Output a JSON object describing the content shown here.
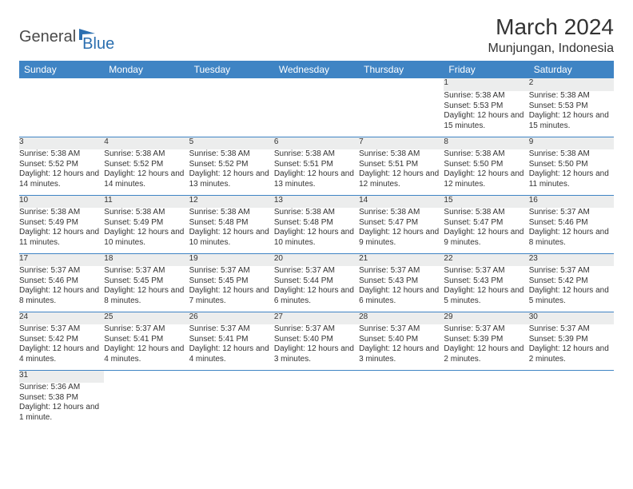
{
  "brand": {
    "text1": "General",
    "text2": "Blue"
  },
  "title": "March 2024",
  "location": "Munjungan, Indonesia",
  "colors": {
    "header_bg": "#3f84c4",
    "header_fg": "#ffffff",
    "daynum_bg": "#eceded",
    "row_divider": "#3f84c4",
    "text": "#333333",
    "logo_gray": "#4a4a4a",
    "logo_blue": "#2b6fb0"
  },
  "weekdays": [
    "Sunday",
    "Monday",
    "Tuesday",
    "Wednesday",
    "Thursday",
    "Friday",
    "Saturday"
  ],
  "weeks": [
    [
      null,
      null,
      null,
      null,
      null,
      {
        "n": "1",
        "sr": "5:38 AM",
        "ss": "5:53 PM",
        "dl": "12 hours and 15 minutes."
      },
      {
        "n": "2",
        "sr": "5:38 AM",
        "ss": "5:53 PM",
        "dl": "12 hours and 15 minutes."
      }
    ],
    [
      {
        "n": "3",
        "sr": "5:38 AM",
        "ss": "5:52 PM",
        "dl": "12 hours and 14 minutes."
      },
      {
        "n": "4",
        "sr": "5:38 AM",
        "ss": "5:52 PM",
        "dl": "12 hours and 14 minutes."
      },
      {
        "n": "5",
        "sr": "5:38 AM",
        "ss": "5:52 PM",
        "dl": "12 hours and 13 minutes."
      },
      {
        "n": "6",
        "sr": "5:38 AM",
        "ss": "5:51 PM",
        "dl": "12 hours and 13 minutes."
      },
      {
        "n": "7",
        "sr": "5:38 AM",
        "ss": "5:51 PM",
        "dl": "12 hours and 12 minutes."
      },
      {
        "n": "8",
        "sr": "5:38 AM",
        "ss": "5:50 PM",
        "dl": "12 hours and 12 minutes."
      },
      {
        "n": "9",
        "sr": "5:38 AM",
        "ss": "5:50 PM",
        "dl": "12 hours and 11 minutes."
      }
    ],
    [
      {
        "n": "10",
        "sr": "5:38 AM",
        "ss": "5:49 PM",
        "dl": "12 hours and 11 minutes."
      },
      {
        "n": "11",
        "sr": "5:38 AM",
        "ss": "5:49 PM",
        "dl": "12 hours and 10 minutes."
      },
      {
        "n": "12",
        "sr": "5:38 AM",
        "ss": "5:48 PM",
        "dl": "12 hours and 10 minutes."
      },
      {
        "n": "13",
        "sr": "5:38 AM",
        "ss": "5:48 PM",
        "dl": "12 hours and 10 minutes."
      },
      {
        "n": "14",
        "sr": "5:38 AM",
        "ss": "5:47 PM",
        "dl": "12 hours and 9 minutes."
      },
      {
        "n": "15",
        "sr": "5:38 AM",
        "ss": "5:47 PM",
        "dl": "12 hours and 9 minutes."
      },
      {
        "n": "16",
        "sr": "5:37 AM",
        "ss": "5:46 PM",
        "dl": "12 hours and 8 minutes."
      }
    ],
    [
      {
        "n": "17",
        "sr": "5:37 AM",
        "ss": "5:46 PM",
        "dl": "12 hours and 8 minutes."
      },
      {
        "n": "18",
        "sr": "5:37 AM",
        "ss": "5:45 PM",
        "dl": "12 hours and 8 minutes."
      },
      {
        "n": "19",
        "sr": "5:37 AM",
        "ss": "5:45 PM",
        "dl": "12 hours and 7 minutes."
      },
      {
        "n": "20",
        "sr": "5:37 AM",
        "ss": "5:44 PM",
        "dl": "12 hours and 6 minutes."
      },
      {
        "n": "21",
        "sr": "5:37 AM",
        "ss": "5:43 PM",
        "dl": "12 hours and 6 minutes."
      },
      {
        "n": "22",
        "sr": "5:37 AM",
        "ss": "5:43 PM",
        "dl": "12 hours and 5 minutes."
      },
      {
        "n": "23",
        "sr": "5:37 AM",
        "ss": "5:42 PM",
        "dl": "12 hours and 5 minutes."
      }
    ],
    [
      {
        "n": "24",
        "sr": "5:37 AM",
        "ss": "5:42 PM",
        "dl": "12 hours and 4 minutes."
      },
      {
        "n": "25",
        "sr": "5:37 AM",
        "ss": "5:41 PM",
        "dl": "12 hours and 4 minutes."
      },
      {
        "n": "26",
        "sr": "5:37 AM",
        "ss": "5:41 PM",
        "dl": "12 hours and 4 minutes."
      },
      {
        "n": "27",
        "sr": "5:37 AM",
        "ss": "5:40 PM",
        "dl": "12 hours and 3 minutes."
      },
      {
        "n": "28",
        "sr": "5:37 AM",
        "ss": "5:40 PM",
        "dl": "12 hours and 3 minutes."
      },
      {
        "n": "29",
        "sr": "5:37 AM",
        "ss": "5:39 PM",
        "dl": "12 hours and 2 minutes."
      },
      {
        "n": "30",
        "sr": "5:37 AM",
        "ss": "5:39 PM",
        "dl": "12 hours and 2 minutes."
      }
    ],
    [
      {
        "n": "31",
        "sr": "5:36 AM",
        "ss": "5:38 PM",
        "dl": "12 hours and 1 minute."
      },
      null,
      null,
      null,
      null,
      null,
      null
    ]
  ],
  "labels": {
    "sunrise": "Sunrise:",
    "sunset": "Sunset:",
    "daylight": "Daylight:"
  }
}
